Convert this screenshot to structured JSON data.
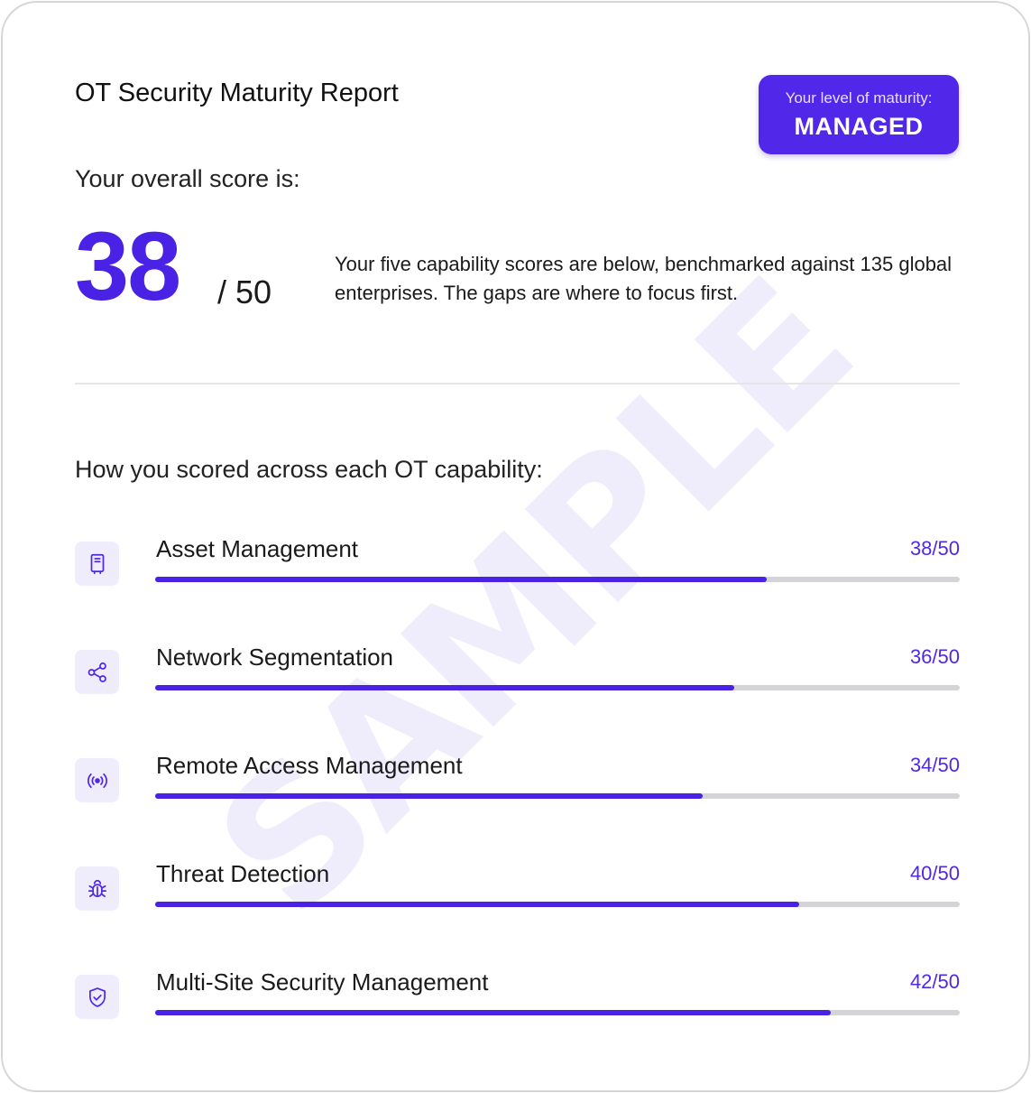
{
  "report": {
    "title": "OT Security Maturity Report",
    "maturity_label": "Your level of maturity:",
    "maturity_value": "MANAGED",
    "overall_label": "Your overall score is:",
    "overall_score": "38",
    "overall_max": "/ 50",
    "description": "Your five capability scores are below, benchmarked against 135 global enterprises. The gaps are where to focus first.",
    "watermark": "SAMPLE"
  },
  "capabilities_label": "How you scored across each OT capability:",
  "capabilities": [
    {
      "name": "Asset Management",
      "score_text": "38/50",
      "score": 38,
      "max": 50,
      "icon": "device-icon"
    },
    {
      "name": "Network Segmentation",
      "score_text": "36/50",
      "score": 36,
      "max": 50,
      "icon": "share-icon"
    },
    {
      "name": "Remote Access Management",
      "score_text": "34/50",
      "score": 34,
      "max": 50,
      "icon": "broadcast-icon"
    },
    {
      "name": "Threat Detection",
      "score_text": "40/50",
      "score": 40,
      "max": 50,
      "icon": "bug-icon"
    },
    {
      "name": "Multi-Site Security Management",
      "score_text": "42/50",
      "score": 42,
      "max": 50,
      "icon": "shield-check-icon"
    }
  ],
  "colors": {
    "accent": "#4a22e6",
    "badge": "#5127ea",
    "track": "#d4d4d8",
    "icon_bg": "#efedfb"
  }
}
